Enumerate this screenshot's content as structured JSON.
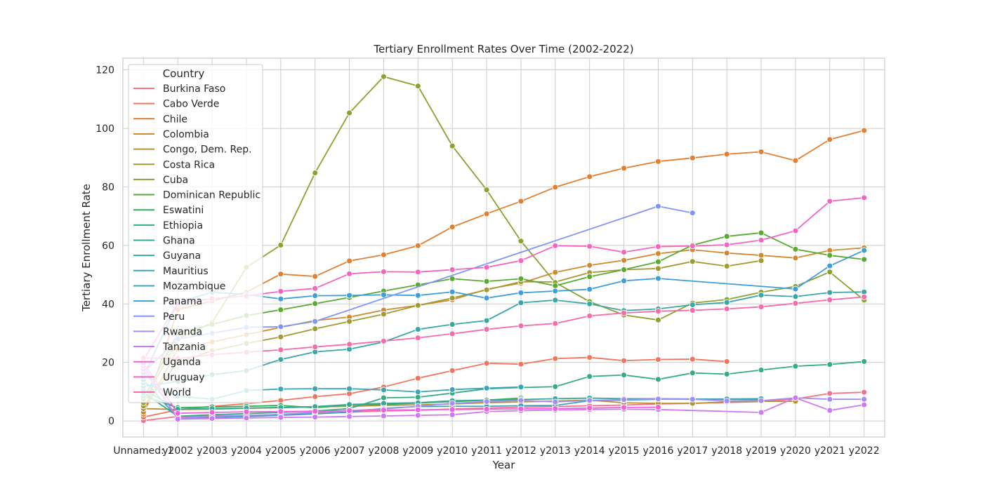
{
  "chart_data": {
    "type": "line",
    "title": "Tertiary Enrollment Rates Over Time (2002-2022)",
    "xlabel": "Year",
    "ylabel": "Tertiary Enrollment Rate",
    "categories": [
      "Unnamed: 1",
      "y2002",
      "y2003",
      "y2004",
      "y2005",
      "y2006",
      "y2007",
      "y2008",
      "y2009",
      "y2010",
      "y2011",
      "y2012",
      "y2013",
      "y2014",
      "y2015",
      "y2016",
      "y2017",
      "y2018",
      "y2019",
      "y2020",
      "y2021",
      "y2022"
    ],
    "ylim": [
      -5.5,
      124
    ],
    "yticks": [
      0,
      20,
      40,
      60,
      80,
      100,
      120
    ],
    "grid": true,
    "legend": {
      "title": "Country",
      "position": "top-left"
    },
    "series": [
      {
        "name": "Burkina Faso",
        "color": "#f77189",
        "values": [
          0.1,
          1.5,
          1.7,
          1.9,
          2.2,
          2.6,
          3.0,
          3.4,
          3.6,
          4.1,
          4.4,
          4.7,
          4.9,
          5.2,
          5.4,
          5.8,
          6.0,
          6.3,
          6.6,
          7.5,
          9.4,
          9.8
        ]
      },
      {
        "name": "Cabo Verde",
        "color": "#f3745e",
        "values": [
          1.3,
          3.8,
          5.0,
          5.9,
          7.0,
          8.3,
          9.3,
          11.6,
          14.6,
          17.2,
          19.7,
          19.4,
          21.3,
          21.7,
          20.6,
          21.0,
          21.1,
          20.3,
          null,
          null,
          null,
          null
        ]
      },
      {
        "name": "Chile",
        "color": "#e27f31",
        "values": [
          2.3,
          38.0,
          41.0,
          44.0,
          50.2,
          49.4,
          54.7,
          56.8,
          59.9,
          66.3,
          70.8,
          75.1,
          79.9,
          83.5,
          86.4,
          88.7,
          89.9,
          91.2,
          92.0,
          89.0,
          96.2,
          99.3
        ]
      },
      {
        "name": "Colombia",
        "color": "#d08930",
        "values": [
          3.0,
          24.5,
          27.0,
          29.5,
          32.0,
          34.3,
          35.5,
          37.9,
          39.5,
          41.4,
          45.0,
          47.1,
          50.8,
          53.2,
          54.9,
          57.2,
          58.5,
          57.4,
          56.6,
          55.7,
          58.3,
          59.2
        ]
      },
      {
        "name": "Congo, Dem. Rep.",
        "color": "#b99333",
        "values": [
          4.2,
          3.9,
          4.0,
          4.3,
          4.5,
          4.8,
          5.0,
          5.3,
          5.5,
          5.8,
          6.2,
          6.5,
          6.8,
          7.1,
          6.2,
          6.0,
          6.0,
          6.5,
          6.7,
          6.7,
          null,
          null
        ]
      },
      {
        "name": "Costa Rica",
        "color": "#a39a31",
        "values": [
          5.1,
          20.0,
          24.0,
          26.5,
          28.7,
          31.5,
          34.0,
          36.5,
          39.5,
          42.0,
          44.8,
          47.6,
          47.5,
          50.7,
          51.7,
          52.1,
          54.5,
          52.9,
          54.8,
          null,
          null,
          null
        ]
      },
      {
        "name": "Cuba",
        "color": "#89a230",
        "values": [
          6.2,
          28.0,
          33.6,
          52.5,
          60.1,
          84.8,
          105.3,
          117.7,
          114.5,
          94.0,
          79.0,
          61.5,
          47.3,
          40.8,
          36.2,
          34.5,
          40.3,
          41.5,
          44.0,
          46.0,
          50.9,
          41.3
        ]
      },
      {
        "name": "Dominican Republic",
        "color": "#5aa931",
        "values": [
          7.5,
          30.0,
          33.0,
          36.0,
          38.0,
          40.1,
          42.2,
          44.4,
          46.5,
          48.6,
          47.7,
          48.6,
          46.2,
          49.3,
          51.7,
          54.4,
          60.1,
          63.1,
          64.3,
          58.7,
          56.6,
          55.2
        ]
      },
      {
        "name": "Eswatini",
        "color": "#33ae59",
        "values": [
          8.5,
          4.5,
          4.8,
          5.0,
          5.3,
          4.5,
          5.5,
          5.6,
          6.1,
          6.6,
          7.1,
          7.8,
          null,
          null,
          null,
          null,
          null,
          null,
          null,
          null,
          null,
          null
        ]
      },
      {
        "name": "Ethiopia",
        "color": "#35ab86",
        "values": [
          9.6,
          1.6,
          2.1,
          2.5,
          2.9,
          3.4,
          4.2,
          7.9,
          8.1,
          9.5,
          11.0,
          11.4,
          11.7,
          15.2,
          15.7,
          14.2,
          16.4,
          16.0,
          17.4,
          18.7,
          19.3,
          20.3
        ]
      },
      {
        "name": "Ghana",
        "color": "#36a998",
        "values": [
          10.8,
          4.0,
          4.2,
          4.4,
          4.6,
          4.9,
          5.6,
          6.0,
          6.2,
          6.9,
          7.1,
          7.3,
          7.6,
          7.8,
          7.6,
          7.6,
          7.5,
          7.4,
          7.3,
          null,
          null,
          null
        ]
      },
      {
        "name": "Guyana",
        "color": "#38a7a5",
        "values": [
          11.8,
          13.5,
          15.8,
          17.2,
          21.0,
          23.6,
          24.5,
          27.0,
          31.3,
          33.0,
          34.3,
          40.4,
          41.3,
          40.0,
          37.7,
          38.3,
          39.7,
          40.5,
          43.0,
          42.5,
          43.9,
          44.1
        ]
      },
      {
        "name": "Mauritius",
        "color": "#3aa6b2",
        "values": [
          13.0,
          8.5,
          7.4,
          10.4,
          10.9,
          11.0,
          11.0,
          10.6,
          9.9,
          10.7,
          11.2,
          11.6,
          null,
          null,
          null,
          null,
          null,
          null,
          null,
          null,
          null,
          null
        ]
      },
      {
        "name": "Mozambique",
        "color": "#3ba3be",
        "values": [
          14.0,
          1.0,
          1.2,
          1.5,
          1.9,
          2.4,
          3.0,
          4.3,
          4.9,
          5.0,
          5.0,
          5.2,
          5.3,
          6.9,
          7.1,
          7.4,
          7.4,
          7.5,
          7.6,
          null,
          null,
          null
        ]
      },
      {
        "name": "Panama",
        "color": "#3c9fd8",
        "values": [
          15.2,
          40.5,
          44.0,
          43.2,
          41.7,
          42.8,
          42.9,
          43.1,
          42.9,
          44.1,
          42.0,
          43.8,
          44.4,
          45.0,
          47.9,
          48.7,
          null,
          null,
          null,
          45.1,
          53.0,
          58.3
        ]
      },
      {
        "name": "Peru",
        "color": "#7e97f4",
        "values": [
          16.5,
          28.0,
          30.0,
          32.0,
          32.2,
          34.0,
          null,
          null,
          null,
          null,
          null,
          null,
          null,
          null,
          null,
          73.4,
          71.1,
          null,
          null,
          null,
          null,
          null
        ]
      },
      {
        "name": "Rwanda",
        "color": "#a48df4",
        "values": [
          17.6,
          1.0,
          1.5,
          1.9,
          2.2,
          3.0,
          3.5,
          4.1,
          5.0,
          6.0,
          6.6,
          7.0,
          6.5,
          7.0,
          7.3,
          7.5,
          7.4,
          6.8,
          6.9,
          7.9,
          7.4,
          7.4
        ]
      },
      {
        "name": "Tanzania",
        "color": "#cc7af4",
        "values": [
          18.8,
          0.6,
          0.8,
          1.0,
          1.2,
          1.3,
          1.5,
          1.7,
          1.9,
          2.1,
          3.2,
          3.5,
          3.7,
          3.9,
          4.0,
          3.9,
          null,
          null,
          2.9,
          7.9,
          3.6,
          5.5
        ]
      },
      {
        "name": "Uganda",
        "color": "#f061dd",
        "values": [
          19.8,
          2.6,
          2.9,
          3.1,
          3.2,
          3.3,
          3.5,
          3.7,
          3.8,
          3.9,
          4.0,
          4.1,
          4.2,
          4.4,
          4.6,
          4.7,
          null,
          null,
          null,
          null,
          null,
          null
        ]
      },
      {
        "name": "Uruguay",
        "color": "#f465bf",
        "values": [
          20.8,
          40.3,
          41.8,
          42.7,
          44.3,
          45.3,
          50.3,
          51.0,
          50.9,
          51.7,
          52.5,
          54.8,
          59.9,
          59.7,
          57.7,
          59.6,
          59.8,
          60.2,
          61.8,
          65.0,
          75.1,
          76.3
        ]
      },
      {
        "name": "World",
        "color": "#f66bab",
        "values": [
          21.5,
          21.3,
          22.6,
          23.5,
          24.3,
          25.3,
          26.2,
          27.3,
          28.4,
          29.8,
          31.3,
          32.5,
          33.3,
          35.9,
          36.9,
          37.5,
          37.8,
          38.3,
          39.0,
          40.2,
          41.4,
          42.4
        ]
      }
    ]
  }
}
